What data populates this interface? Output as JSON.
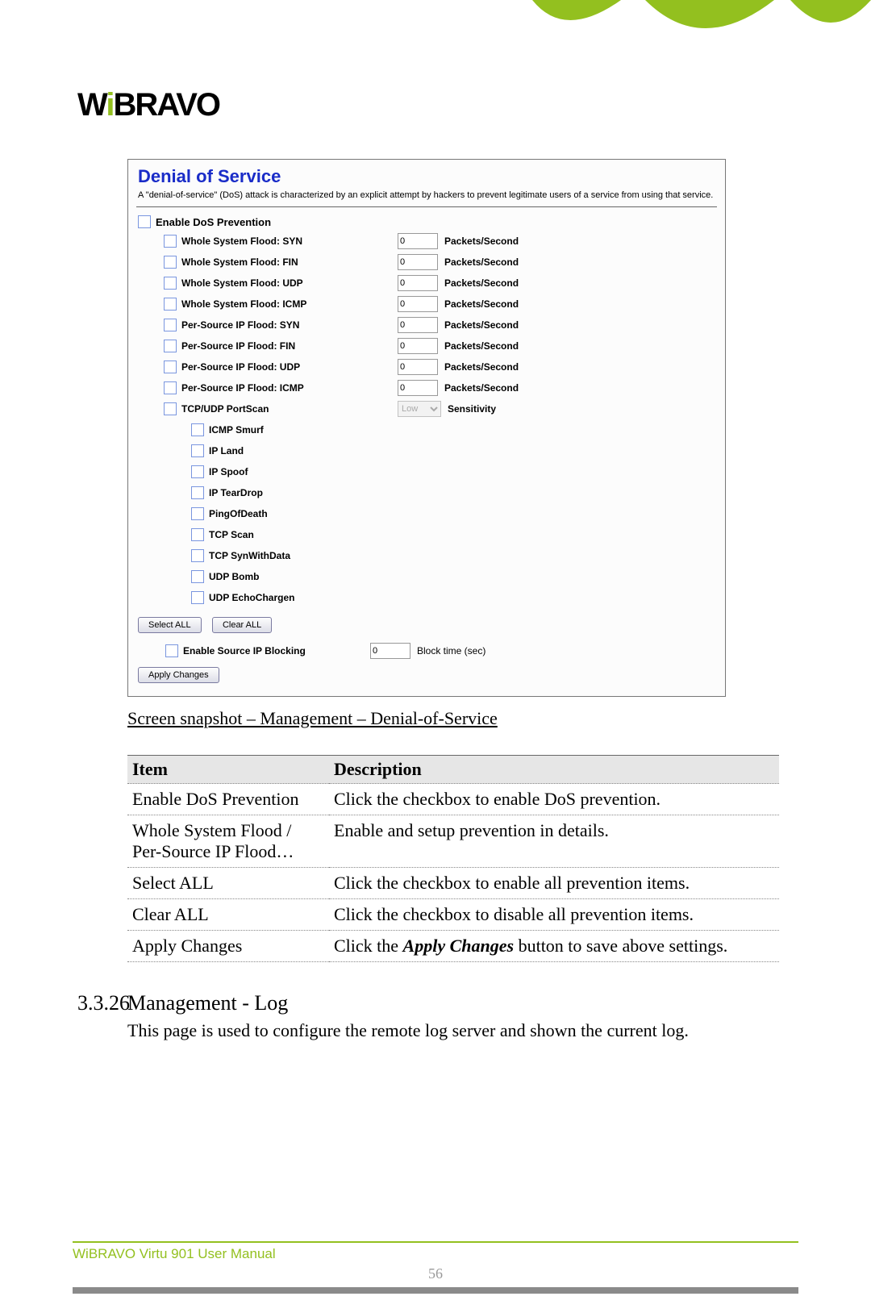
{
  "logo_parts": {
    "a": "W",
    "b": "i",
    "c": "BRAVO"
  },
  "screenshot": {
    "title": "Denial of Service",
    "desc": "A \"denial-of-service\" (DoS) attack is characterized by an explicit attempt by hackers to prevent legitimate users of a service from using that service.",
    "enable_label": "Enable DoS Prevention",
    "packet_unit": "Packets/Second",
    "flood_rows": [
      "Whole System Flood: SYN",
      "Whole System Flood: FIN",
      "Whole System Flood: UDP",
      "Whole System Flood: ICMP",
      "Per-Source IP Flood: SYN",
      "Per-Source IP Flood: FIN",
      "Per-Source IP Flood: UDP",
      "Per-Source IP Flood: ICMP"
    ],
    "flood_value": "0",
    "portscan": {
      "label": "TCP/UDP PortScan",
      "sel": "Low",
      "unit": "Sensitivity"
    },
    "simple_rows": [
      "ICMP Smurf",
      "IP Land",
      "IP Spoof",
      "IP TearDrop",
      "PingOfDeath",
      "TCP Scan",
      "TCP SynWithData",
      "UDP Bomb",
      "UDP EchoChargen"
    ],
    "select_all": "Select ALL",
    "clear_all": "Clear ALL",
    "block": {
      "label": "Enable Source IP Blocking",
      "value": "0",
      "unit": "Block time (sec)"
    },
    "apply": "Apply Changes"
  },
  "caption": "Screen snapshot – Management – Denial-of-Service",
  "table": {
    "h1": "Item",
    "h2": "Description",
    "rows": [
      {
        "i": "Enable DoS Prevention",
        "d": "Click the checkbox to enable DoS prevention."
      },
      {
        "i": "Whole System Flood / Per-Source IP Flood…",
        "d": "Enable and setup prevention in details."
      },
      {
        "i": "Select ALL",
        "d": "Click the checkbox to enable all prevention items."
      },
      {
        "i": "Clear ALL",
        "d": "Click the checkbox to disable all prevention items."
      },
      {
        "i": "Apply Changes",
        "d_pre": "Click the ",
        "d_em": "Apply Changes",
        "d_post": " button to save above settings."
      }
    ]
  },
  "section": {
    "num": "3.3.26",
    "title": "Management - Log",
    "body": "This page is used to configure the remote log server and shown the current log."
  },
  "footer": {
    "txt": "WiBRAVO Virtu 901 User Manual",
    "page": "56"
  }
}
